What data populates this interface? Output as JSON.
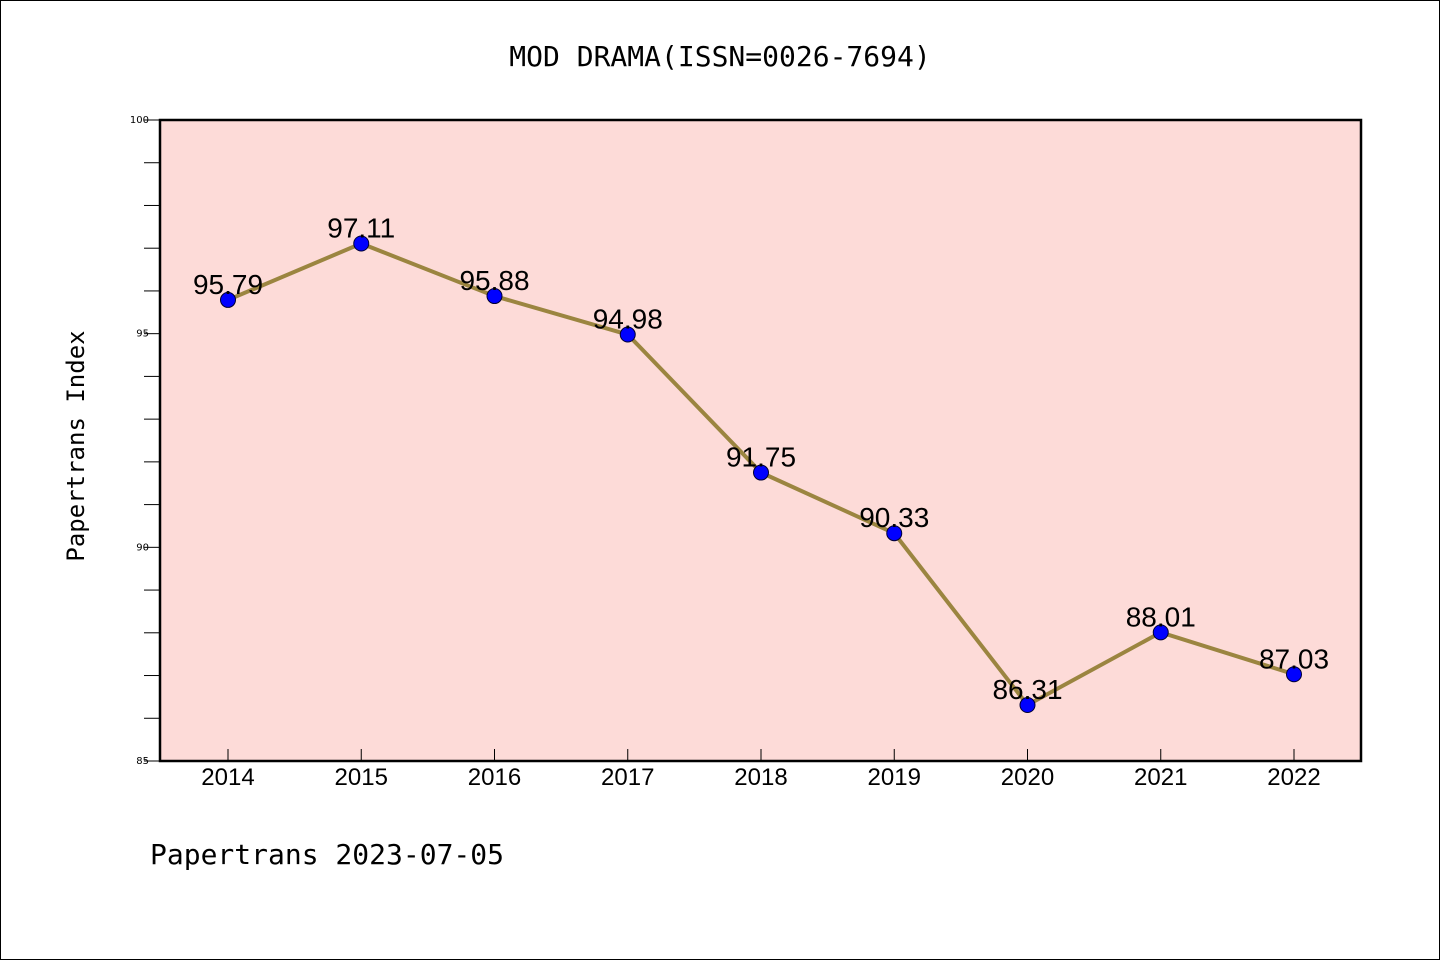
{
  "chart_data": {
    "type": "line",
    "title": "MOD DRAMA(ISSN=0026-7694)",
    "xlabel": "",
    "ylabel": "Papertrans Index",
    "footer": "Papertrans 2023-07-05",
    "x": [
      "2014",
      "2015",
      "2016",
      "2017",
      "2018",
      "2019",
      "2020",
      "2021",
      "2022"
    ],
    "series": [
      {
        "values": [
          95.79,
          97.11,
          95.88,
          94.98,
          91.75,
          90.33,
          86.31,
          88.01,
          87.03
        ],
        "labels": [
          "95.79",
          "97.11",
          "95.88",
          "94.98",
          "91.75",
          "90.33",
          "86.31",
          "88.01",
          "87.03"
        ]
      }
    ],
    "ylim": [
      85,
      100
    ],
    "yticks": [
      "85",
      "90",
      "95",
      "100"
    ],
    "minor_tick_step": 1,
    "grid": false,
    "legend": "none",
    "colors": {
      "plot_background": "#fddbd8",
      "line": "#9b8540",
      "marker": "#0000ff",
      "marker_edge": "#000033",
      "axes": "#000000"
    }
  }
}
